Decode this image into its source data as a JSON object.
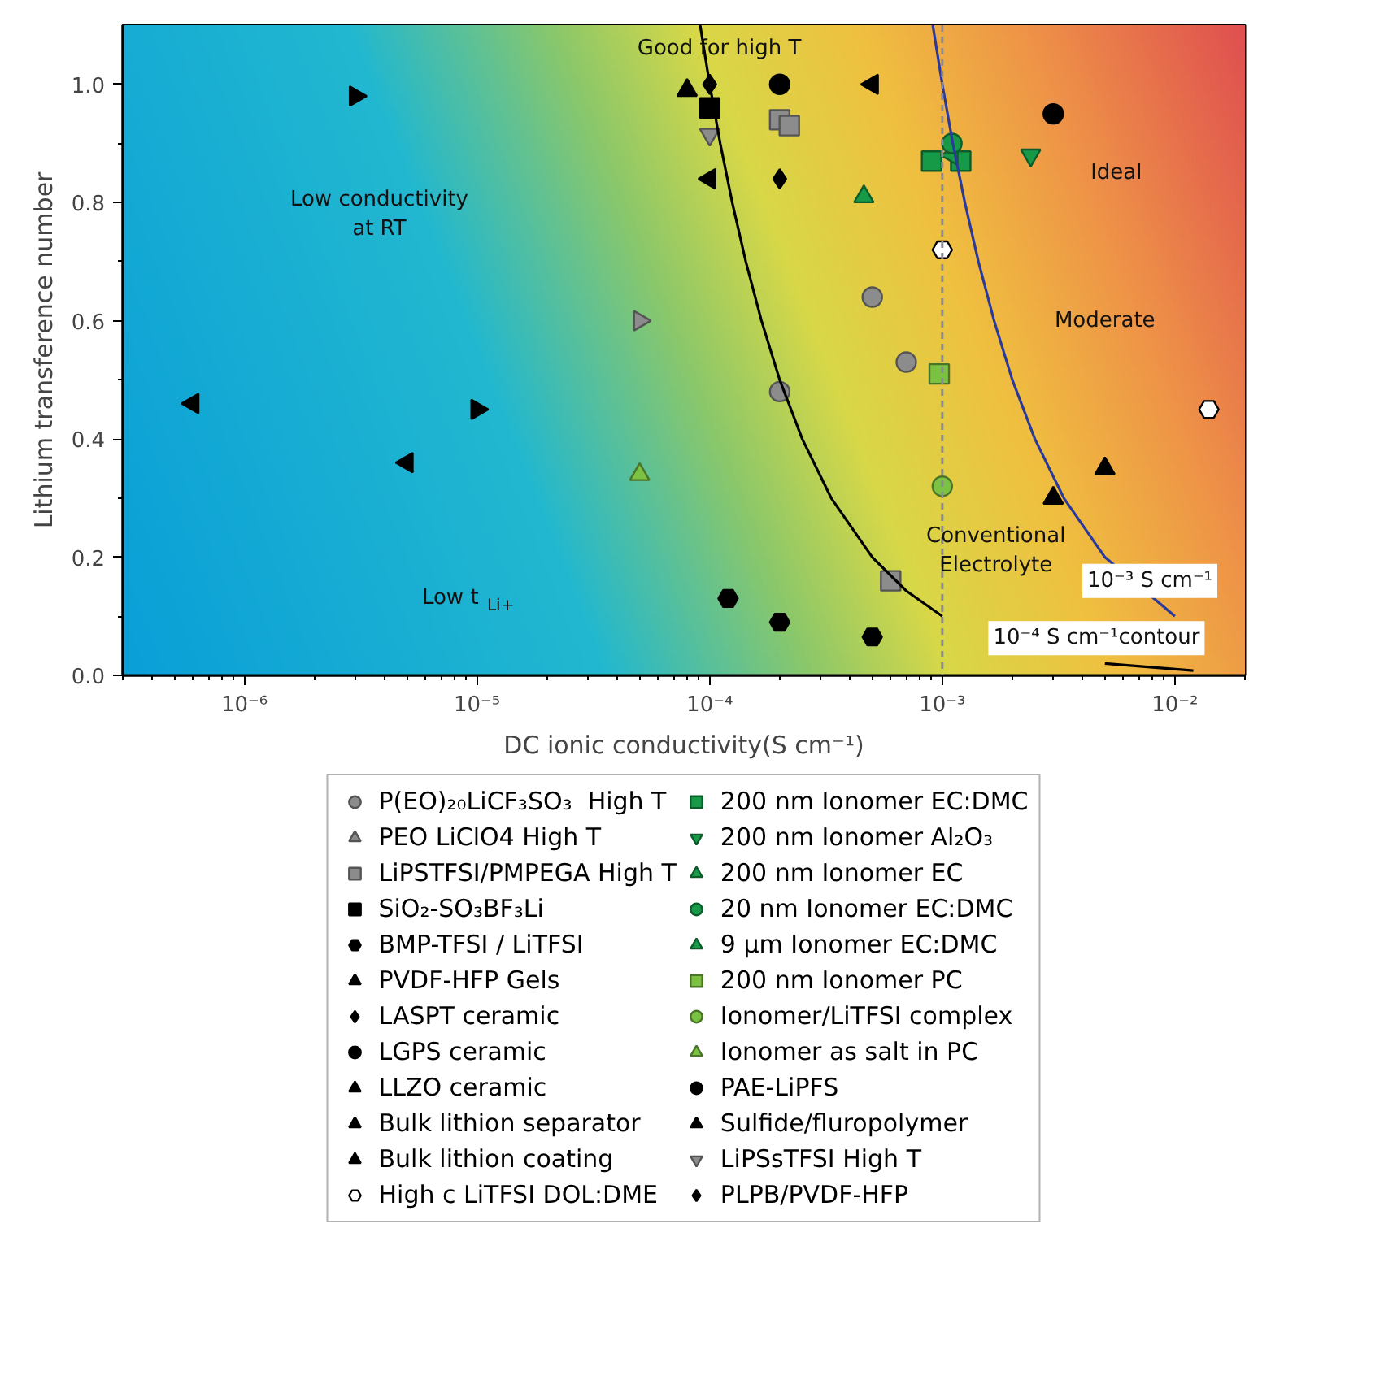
{
  "chart_data": {
    "type": "scatter",
    "xlabel": "DC ionic conductivity(S cm⁻¹)",
    "ylabel": "Lithium transference number",
    "log": "x",
    "grid": false,
    "legend": "bottom",
    "xlim": [
      3e-07,
      0.02
    ],
    "ylim": [
      0,
      1.1
    ],
    "xticks": [
      {
        "value": 1e-06,
        "label": "10⁻⁶"
      },
      {
        "value": 1e-05,
        "label": "10⁻⁵"
      },
      {
        "value": 0.0001,
        "label": "10⁻⁴"
      },
      {
        "value": 0.001,
        "label": "10⁻³"
      },
      {
        "value": 0.01,
        "label": "10⁻²"
      }
    ],
    "yticks": [
      {
        "value": 0,
        "label": "0.0"
      },
      {
        "value": 0.2,
        "label": "0.2"
      },
      {
        "value": 0.4,
        "label": "0.4"
      },
      {
        "value": 0.6,
        "label": "0.6"
      },
      {
        "value": 0.8,
        "label": "0.8"
      },
      {
        "value": 1,
        "label": "1.0"
      }
    ],
    "ref_lines": [
      {
        "axis": "x",
        "value": 0.001,
        "color": "#8a8a9a",
        "line_style": "dashed"
      }
    ],
    "annotations": [
      "Good for high T",
      "Low conductivity at RT",
      "Ideal",
      "Moderate",
      "Conventional Electrolyte",
      "Low t$_{Li+}$",
      "10⁻³ S cm⁻¹",
      "10⁻⁴ S cm⁻¹contour"
    ],
    "series": [
      {
        "name": "P(EO)₂₀LiCF₃SO₃  High T",
        "marker": "circle",
        "color": "#8c8c8c",
        "x": [
          0.0005,
          0.0007,
          0.0002
        ],
        "values": [
          0.64,
          0.53,
          0.48
        ]
      },
      {
        "name": "PEO LiClO4 High T",
        "marker": "triangle_right",
        "color": "#8c8c8c",
        "x": [
          5e-05
        ],
        "values": [
          0.6
        ]
      },
      {
        "name": "LiPSTFSI/PMPEGA High T",
        "marker": "square",
        "color": "#8c8c8c",
        "x": [
          0.0002,
          0.00022,
          0.0006
        ],
        "values": [
          0.94,
          0.93,
          0.16
        ]
      },
      {
        "name": "SiO₂-SO₃BF₃Li",
        "marker": "square",
        "color": "#000000",
        "x": [
          0.0001
        ],
        "values": [
          0.96
        ]
      },
      {
        "name": "BMP-TFSI / LiTFSI",
        "color": "#000000",
        "x": [
          0.00012,
          0.0002,
          0.0005
        ],
        "values": [
          0.13,
          0.09,
          0.065
        ]
      },
      {
        "name": "PVDF-HFP Gels",
        "marker": "triangle",
        "color": "#000000",
        "x": [
          0.005,
          0.003
        ],
        "values": [
          0.35,
          0.3
        ]
      },
      {
        "name": "LASPT ceramic",
        "marker": "diamond",
        "color": "#000000",
        "x": [
          0.0001
        ],
        "values": [
          1.0
        ]
      },
      {
        "name": "LGPS ceramic",
        "marker": "circle",
        "color": "#000000",
        "x": [
          0.0002
        ],
        "values": [
          1.0
        ]
      },
      {
        "name": "LLZO ceramic",
        "marker": "triangle_left",
        "color": "#000000",
        "x": [
          0.0005
        ],
        "values": [
          1.0
        ]
      },
      {
        "name": "Bulk lithion separator",
        "marker": "triangle_left",
        "color": "#000000",
        "x": [
          6e-07,
          5e-06,
          0.0001
        ],
        "values": [
          0.46,
          0.36,
          0.84
        ]
      },
      {
        "name": "Bulk lithion coating",
        "marker": "triangle_right",
        "color": "#000000",
        "x": [
          3e-06,
          1e-05
        ],
        "values": [
          0.98,
          0.45
        ]
      },
      {
        "name": "High c LiTFSI DOL:DME",
        "color": "#ffffff",
        "x": [
          0.001,
          0.014
        ],
        "values": [
          0.72,
          0.45
        ]
      },
      {
        "name": "200 nm Ionomer EC:DMC",
        "marker": "square",
        "color": "#179a48",
        "x": [
          0.0009,
          0.0012
        ],
        "values": [
          0.87,
          0.87
        ]
      },
      {
        "name": "200 nm Ionomer Al₂O₃",
        "marker": "triangle_down",
        "color": "#179a48",
        "x": [
          0.0024
        ],
        "values": [
          0.88
        ]
      },
      {
        "name": "200 nm Ionomer EC",
        "marker": "triangle_left",
        "color": "#179a48",
        "x": [
          0.0011
        ],
        "values": [
          0.88
        ]
      },
      {
        "name": "20 nm Ionomer EC:DMC",
        "marker": "circle",
        "color": "#179a48",
        "x": [
          0.0011
        ],
        "values": [
          0.9
        ]
      },
      {
        "name": "9 µm Ionomer EC:DMC",
        "marker": "triangle",
        "color": "#179a48",
        "x": [
          0.00046
        ],
        "values": [
          0.81
        ]
      },
      {
        "name": "200 nm Ionomer PC",
        "marker": "square",
        "color": "#7cc242",
        "x": [
          0.00097
        ],
        "values": [
          0.51
        ]
      },
      {
        "name": "Ionomer/LiTFSI complex",
        "marker": "circle",
        "color": "#7cc242",
        "x": [
          0.001
        ],
        "values": [
          0.32
        ]
      },
      {
        "name": "Ionomer as salt in PC",
        "marker": "triangle",
        "color": "#7cc242",
        "x": [
          5e-05
        ],
        "values": [
          0.34
        ]
      },
      {
        "name": "PAE-LiPFS",
        "marker": "circle",
        "color": "#000000",
        "x": [
          0.003
        ],
        "values": [
          0.95
        ]
      },
      {
        "name": "Sulfide/fluropolymer",
        "marker": "triangle",
        "color": "#000000",
        "x": [
          8e-05
        ],
        "values": [
          0.99
        ]
      },
      {
        "name": "LiPSsTFSI High T",
        "marker": "triangle_down",
        "color": "#8c8c8c",
        "x": [
          0.0001
        ],
        "values": [
          0.915
        ]
      },
      {
        "name": "PLPB/PVDF-HFP",
        "marker": "diamond",
        "color": "#000000",
        "x": [
          0.0002
        ],
        "values": [
          0.84
        ]
      },
      {
        "type": "line",
        "color": "#000000",
        "x": [
          9.1e-05,
          0.0001,
          0.000111,
          0.000125,
          0.000143,
          0.000167,
          0.0002,
          0.00025,
          0.000333,
          0.0005,
          0.0007,
          0.001,
          0.0015,
          0.0025,
          0.005,
          0.012
        ],
        "values": [
          1.1,
          1.0,
          0.9,
          0.8,
          0.7,
          0.6,
          0.5,
          0.4,
          0.3,
          0.2,
          0.143,
          0.1,
          null,
          null,
          0.02,
          0.008
        ]
      },
      {
        "type": "line",
        "color": "#2b3a9a",
        "x": [
          0.00091,
          0.001,
          0.00111,
          0.00125,
          0.00143,
          0.00167,
          0.002,
          0.0025,
          0.00333,
          0.005,
          0.01
        ],
        "values": [
          1.1,
          1.0,
          0.9,
          0.8,
          0.7,
          0.6,
          0.5,
          0.4,
          0.3,
          0.2,
          0.1
        ]
      }
    ]
  }
}
